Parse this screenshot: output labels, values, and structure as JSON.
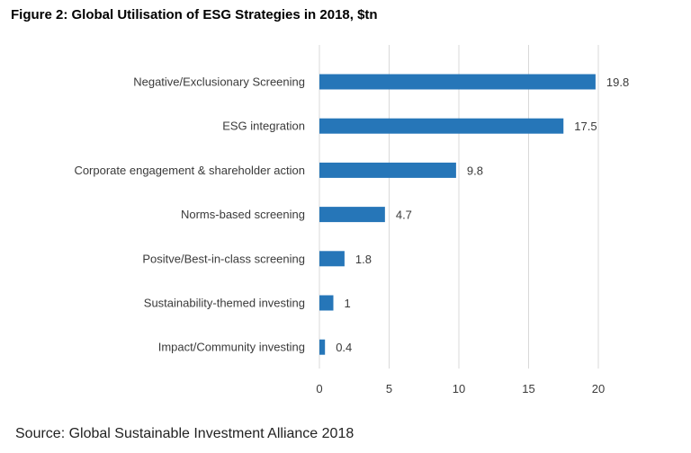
{
  "figure": {
    "title": "Figure 2: Global Utilisation of ESG Strategies in 2018, $tn",
    "source": "Source: Global Sustainable Investment Alliance 2018"
  },
  "chart_data": {
    "type": "bar",
    "orientation": "horizontal",
    "title": "Figure 2: Global Utilisation of ESG Strategies in 2018, $tn",
    "xlabel": "",
    "ylabel": "",
    "categories": [
      "Negative/Exclusionary Screening",
      "ESG integration",
      "Corporate engagement & shareholder action",
      "Norms-based screening",
      "Positve/Best-in-class screening",
      "Sustainability-themed investing",
      "Impact/Community investing"
    ],
    "values": [
      19.8,
      17.5,
      9.8,
      4.7,
      1.8,
      1,
      0.4
    ],
    "value_labels": [
      "19.8",
      "17.5",
      "9.8",
      "4.7",
      "1.8",
      "1",
      "0.4"
    ],
    "xlim": [
      0,
      20
    ],
    "xticks": [
      0,
      5,
      10,
      15,
      20
    ],
    "xtick_labels": [
      "0",
      "5",
      "10",
      "15",
      "20"
    ],
    "grid": true,
    "legend": "none",
    "bar_color": "#2676b8",
    "grid_color": "#d9d9d9"
  }
}
